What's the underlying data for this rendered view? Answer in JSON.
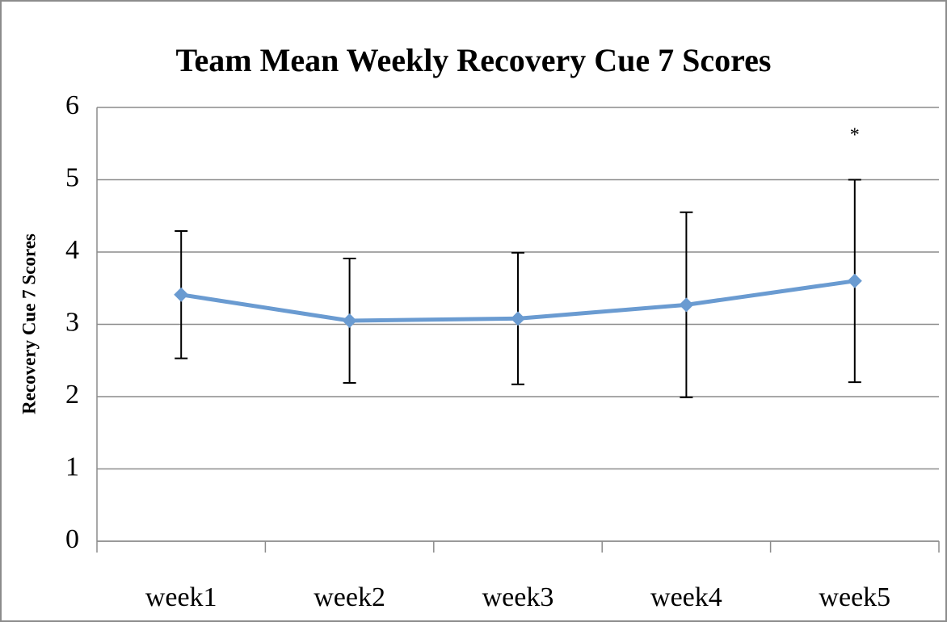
{
  "chart_data": {
    "type": "line",
    "title": "Team Mean Weekly Recovery Cue 7 Scores",
    "y_label": "Recovery Cue 7 Scores",
    "categories": [
      "week1",
      "week2",
      "week3",
      "week4",
      "week5"
    ],
    "values": [
      3.41,
      3.05,
      3.08,
      3.27,
      3.6
    ],
    "errors": [
      0.88,
      0.86,
      0.91,
      1.28,
      1.4
    ],
    "color": "#6a9bd1",
    "annotation": {
      "text": "*",
      "category": 4,
      "y": 5.6
    },
    "ylim": [
      0,
      6
    ],
    "yticks": [
      0,
      1,
      2,
      3,
      4,
      5,
      6
    ],
    "grid": true
  }
}
